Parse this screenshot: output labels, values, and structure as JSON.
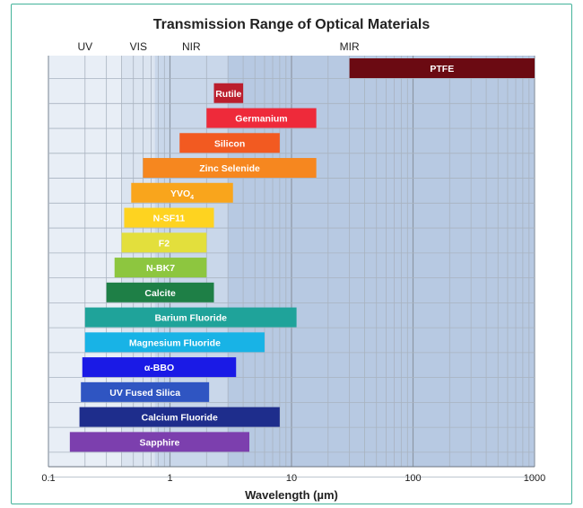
{
  "chart_data": {
    "type": "bar",
    "orientation": "horizontal",
    "title": "Transmission Range of Optical Materials",
    "xlabel": "Wavelength (µm)",
    "x_scale": "log",
    "xlim": [
      0.1,
      1000
    ],
    "x_ticks": [
      "0.1",
      "1",
      "10",
      "100",
      "1000"
    ],
    "grid": true,
    "regions": [
      {
        "label": "UV",
        "start": 0.1,
        "end": 0.4,
        "color": "#e8eef6"
      },
      {
        "label": "VIS",
        "start": 0.4,
        "end": 0.75,
        "color": "#dbe4f0"
      },
      {
        "label": "NIR",
        "start": 0.75,
        "end": 3,
        "color": "#c9d7ea"
      },
      {
        "label": "MIR",
        "start": 3,
        "end": 1000,
        "color": "#b7c9e2"
      }
    ],
    "series": [
      {
        "name": "PTFE",
        "label_sub": "",
        "min": 30,
        "max": 1000,
        "color": "#6b0a12"
      },
      {
        "name": "Rutile",
        "label_sub": "",
        "min": 2.3,
        "max": 4.0,
        "color": "#bb1e2d"
      },
      {
        "name": "Germanium",
        "label_sub": "",
        "min": 2.0,
        "max": 16,
        "color": "#ee2a3a"
      },
      {
        "name": "Silicon",
        "label_sub": "",
        "min": 1.2,
        "max": 8,
        "color": "#f25a21"
      },
      {
        "name": "Zinc Selenide",
        "label_sub": "",
        "min": 0.6,
        "max": 16,
        "color": "#f6871f"
      },
      {
        "name": "YVO",
        "label_sub": "4",
        "min": 0.48,
        "max": 3.3,
        "color": "#f9a51c"
      },
      {
        "name": "N-SF11",
        "label_sub": "",
        "min": 0.42,
        "max": 2.3,
        "color": "#fed320"
      },
      {
        "name": "F2",
        "label_sub": "",
        "min": 0.4,
        "max": 2.0,
        "color": "#e3df3c"
      },
      {
        "name": "N-BK7",
        "label_sub": "",
        "min": 0.35,
        "max": 2.0,
        "color": "#8dc63f"
      },
      {
        "name": "Calcite",
        "label_sub": "",
        "min": 0.3,
        "max": 2.3,
        "color": "#1e7f46"
      },
      {
        "name": "Barium Fluoride",
        "label_sub": "",
        "min": 0.2,
        "max": 11,
        "color": "#1fa39a"
      },
      {
        "name": "Magnesium Fluoride",
        "label_sub": "",
        "min": 0.2,
        "max": 6,
        "color": "#18b3e6"
      },
      {
        "name": "α-BBO",
        "label_sub": "",
        "min": 0.19,
        "max": 3.5,
        "color": "#1a1ae6"
      },
      {
        "name": "UV Fused Silica",
        "label_sub": "",
        "min": 0.185,
        "max": 2.1,
        "color": "#2f55c2"
      },
      {
        "name": "Calcium Fluoride",
        "label_sub": "",
        "min": 0.18,
        "max": 8,
        "color": "#1e2d8c"
      },
      {
        "name": "Sapphire",
        "label_sub": "",
        "min": 0.15,
        "max": 4.5,
        "color": "#7c3fae"
      }
    ]
  }
}
